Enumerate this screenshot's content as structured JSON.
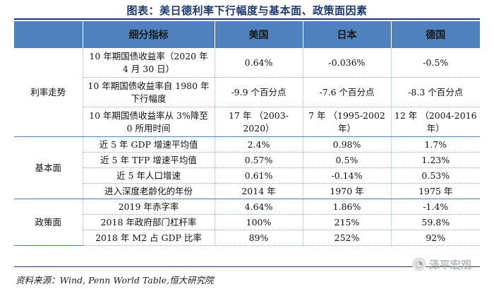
{
  "title": "图表：美日德利率下行幅度与基本面、政策面因素",
  "header": {
    "blank": "",
    "metric": "细分指标",
    "us": "美国",
    "jp": "日本",
    "de": "德国"
  },
  "sections": {
    "rates": "利率走势",
    "fundamentals": "基本面",
    "policy": "政策面"
  },
  "rows": [
    {
      "metric": "10 年期国债收益率（2020 年 4 月 30 日）",
      "us": "0.64%",
      "jp": "-0.036%",
      "de": "-0.5%"
    },
    {
      "metric": "10 年期国债收益率自 1980 年下行幅度",
      "us": "-9.9 个百分点",
      "jp": "-7.6 个百分点",
      "de": "-8.3 个百分点"
    },
    {
      "metric": "10 年期国债收益率从 3%降至 0 所用时间",
      "us": "17 年 （2003-2020）",
      "jp": "7 年 （1995-2002 年）",
      "de": "12 年 （2004-2016 年）"
    },
    {
      "metric": "近 5 年 GDP 增速平均值",
      "us": "2.4%",
      "jp": "0.98%",
      "de": "1.7%"
    },
    {
      "metric": "近 5 年 TFP 增速平均值",
      "us": "0.57%",
      "jp": "0.5%",
      "de": "1.23%"
    },
    {
      "metric": "近 5 年人口增速",
      "us": "0.61%",
      "jp": "-0.14%",
      "de": "0.53%"
    },
    {
      "metric": "进入深度老龄化的年份",
      "us": "2014 年",
      "jp": "1970 年",
      "de": "1975 年"
    },
    {
      "metric": "2019 年赤字率",
      "us": "4.64%",
      "jp": "1.86%",
      "de": "-1.4%"
    },
    {
      "metric": "2018 年政府部门杠杆率",
      "us": "100%",
      "jp": "215%",
      "de": "59.8%"
    },
    {
      "metric": "2018 年 M2 占 GDP 比率",
      "us": "89%",
      "jp": "252%",
      "de": "92%"
    }
  ],
  "source": "资料来源：Wind, Penn World Table,恒大研究院",
  "watermark": "泽平宏观"
}
